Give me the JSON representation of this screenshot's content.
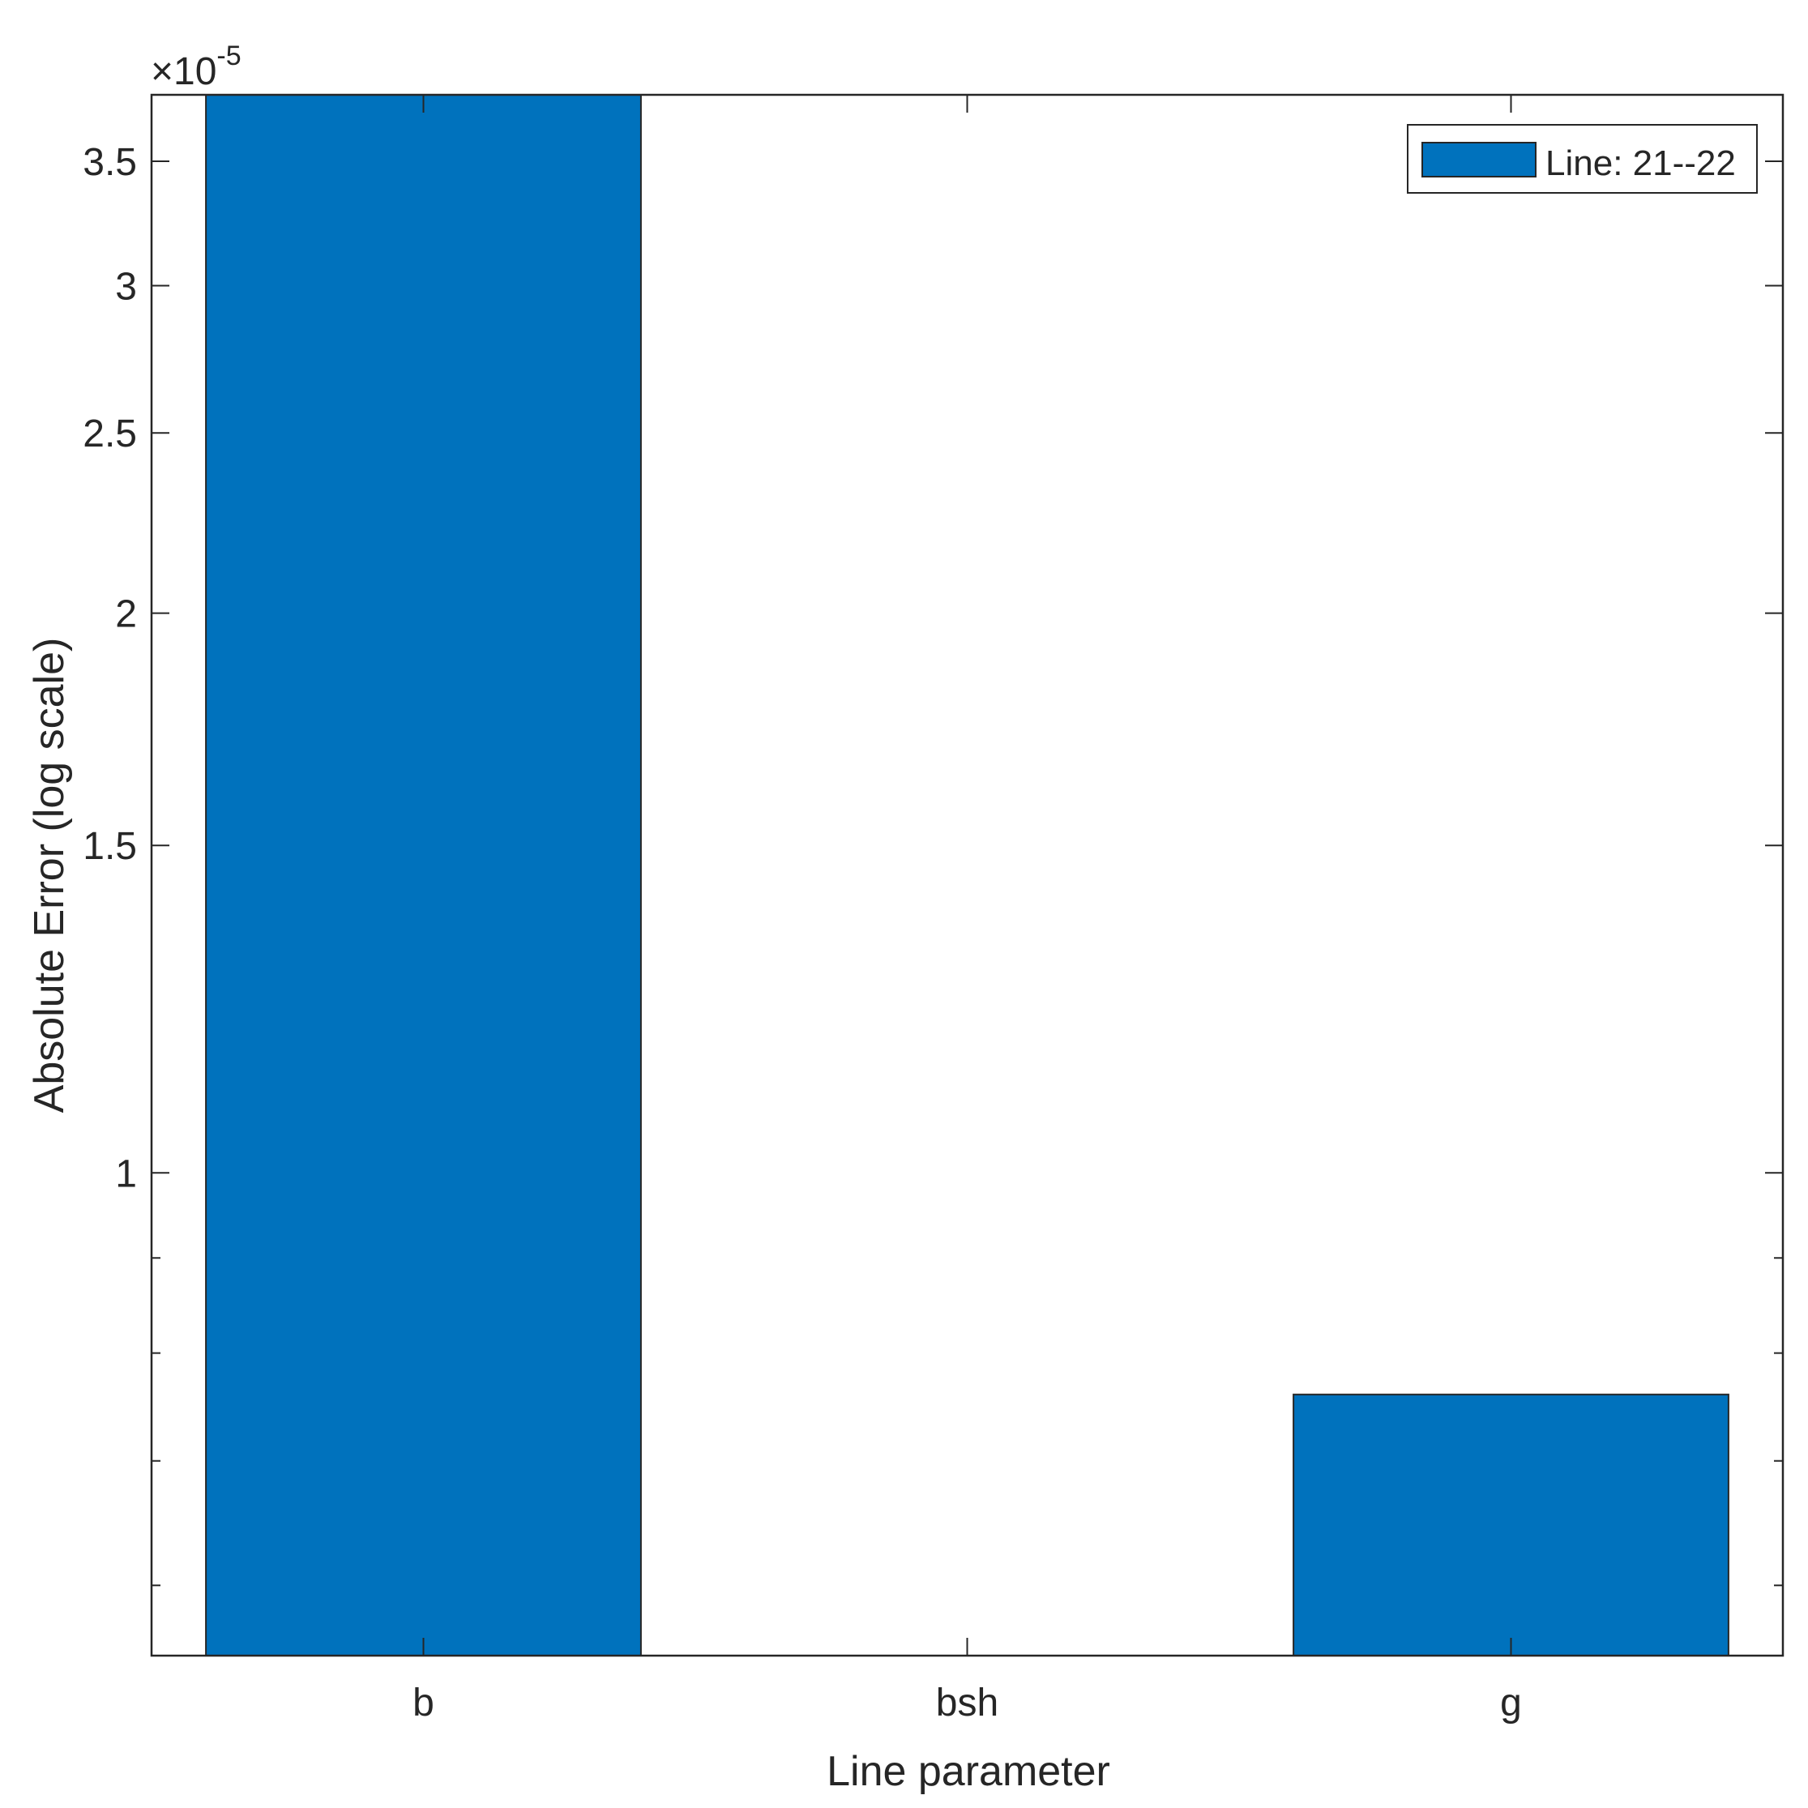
{
  "chart_data": {
    "type": "bar",
    "categories": [
      "b",
      "bsh",
      "g"
    ],
    "series": [
      {
        "name": "Line:  21--22",
        "values": [
          3.9e-05,
          null,
          7.6e-06
        ],
        "color": "#0072BD"
      }
    ],
    "xlabel": "Line parameter",
    "ylabel": "Absolute Error (log scale)",
    "yscale": "log",
    "ylim": [
      5.5e-06,
      3.8e-05
    ],
    "y_multiplier_label": "×10^-5",
    "y_multiplier_base": "×10",
    "y_multiplier_exp": "-5",
    "yticks": [
      1e-05,
      1.5e-05,
      2e-05,
      2.5e-05,
      3e-05,
      3.5e-05
    ],
    "ytick_labels": [
      "1",
      "1.5",
      "2",
      "2.5",
      "3",
      "3.5"
    ],
    "grid": false,
    "legend_position": "top-right"
  }
}
